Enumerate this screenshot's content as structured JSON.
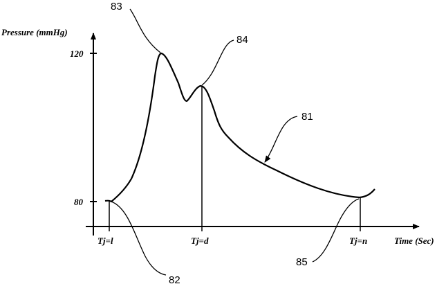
{
  "axes": {
    "y_label": "Pressure (mmHg)",
    "x_label": "Time (Sec)",
    "y_ticks": [
      "120",
      "80"
    ],
    "x_ticks": [
      "Tj=l",
      "Tj=d",
      "Tj=n"
    ]
  },
  "reference_numerals": {
    "waveform": "81",
    "start_point": "82",
    "systolic_peak": "83",
    "dicrotic_point": "84",
    "end_point": "85"
  },
  "colors": {
    "ink": "#000000",
    "background": "#ffffff"
  }
}
